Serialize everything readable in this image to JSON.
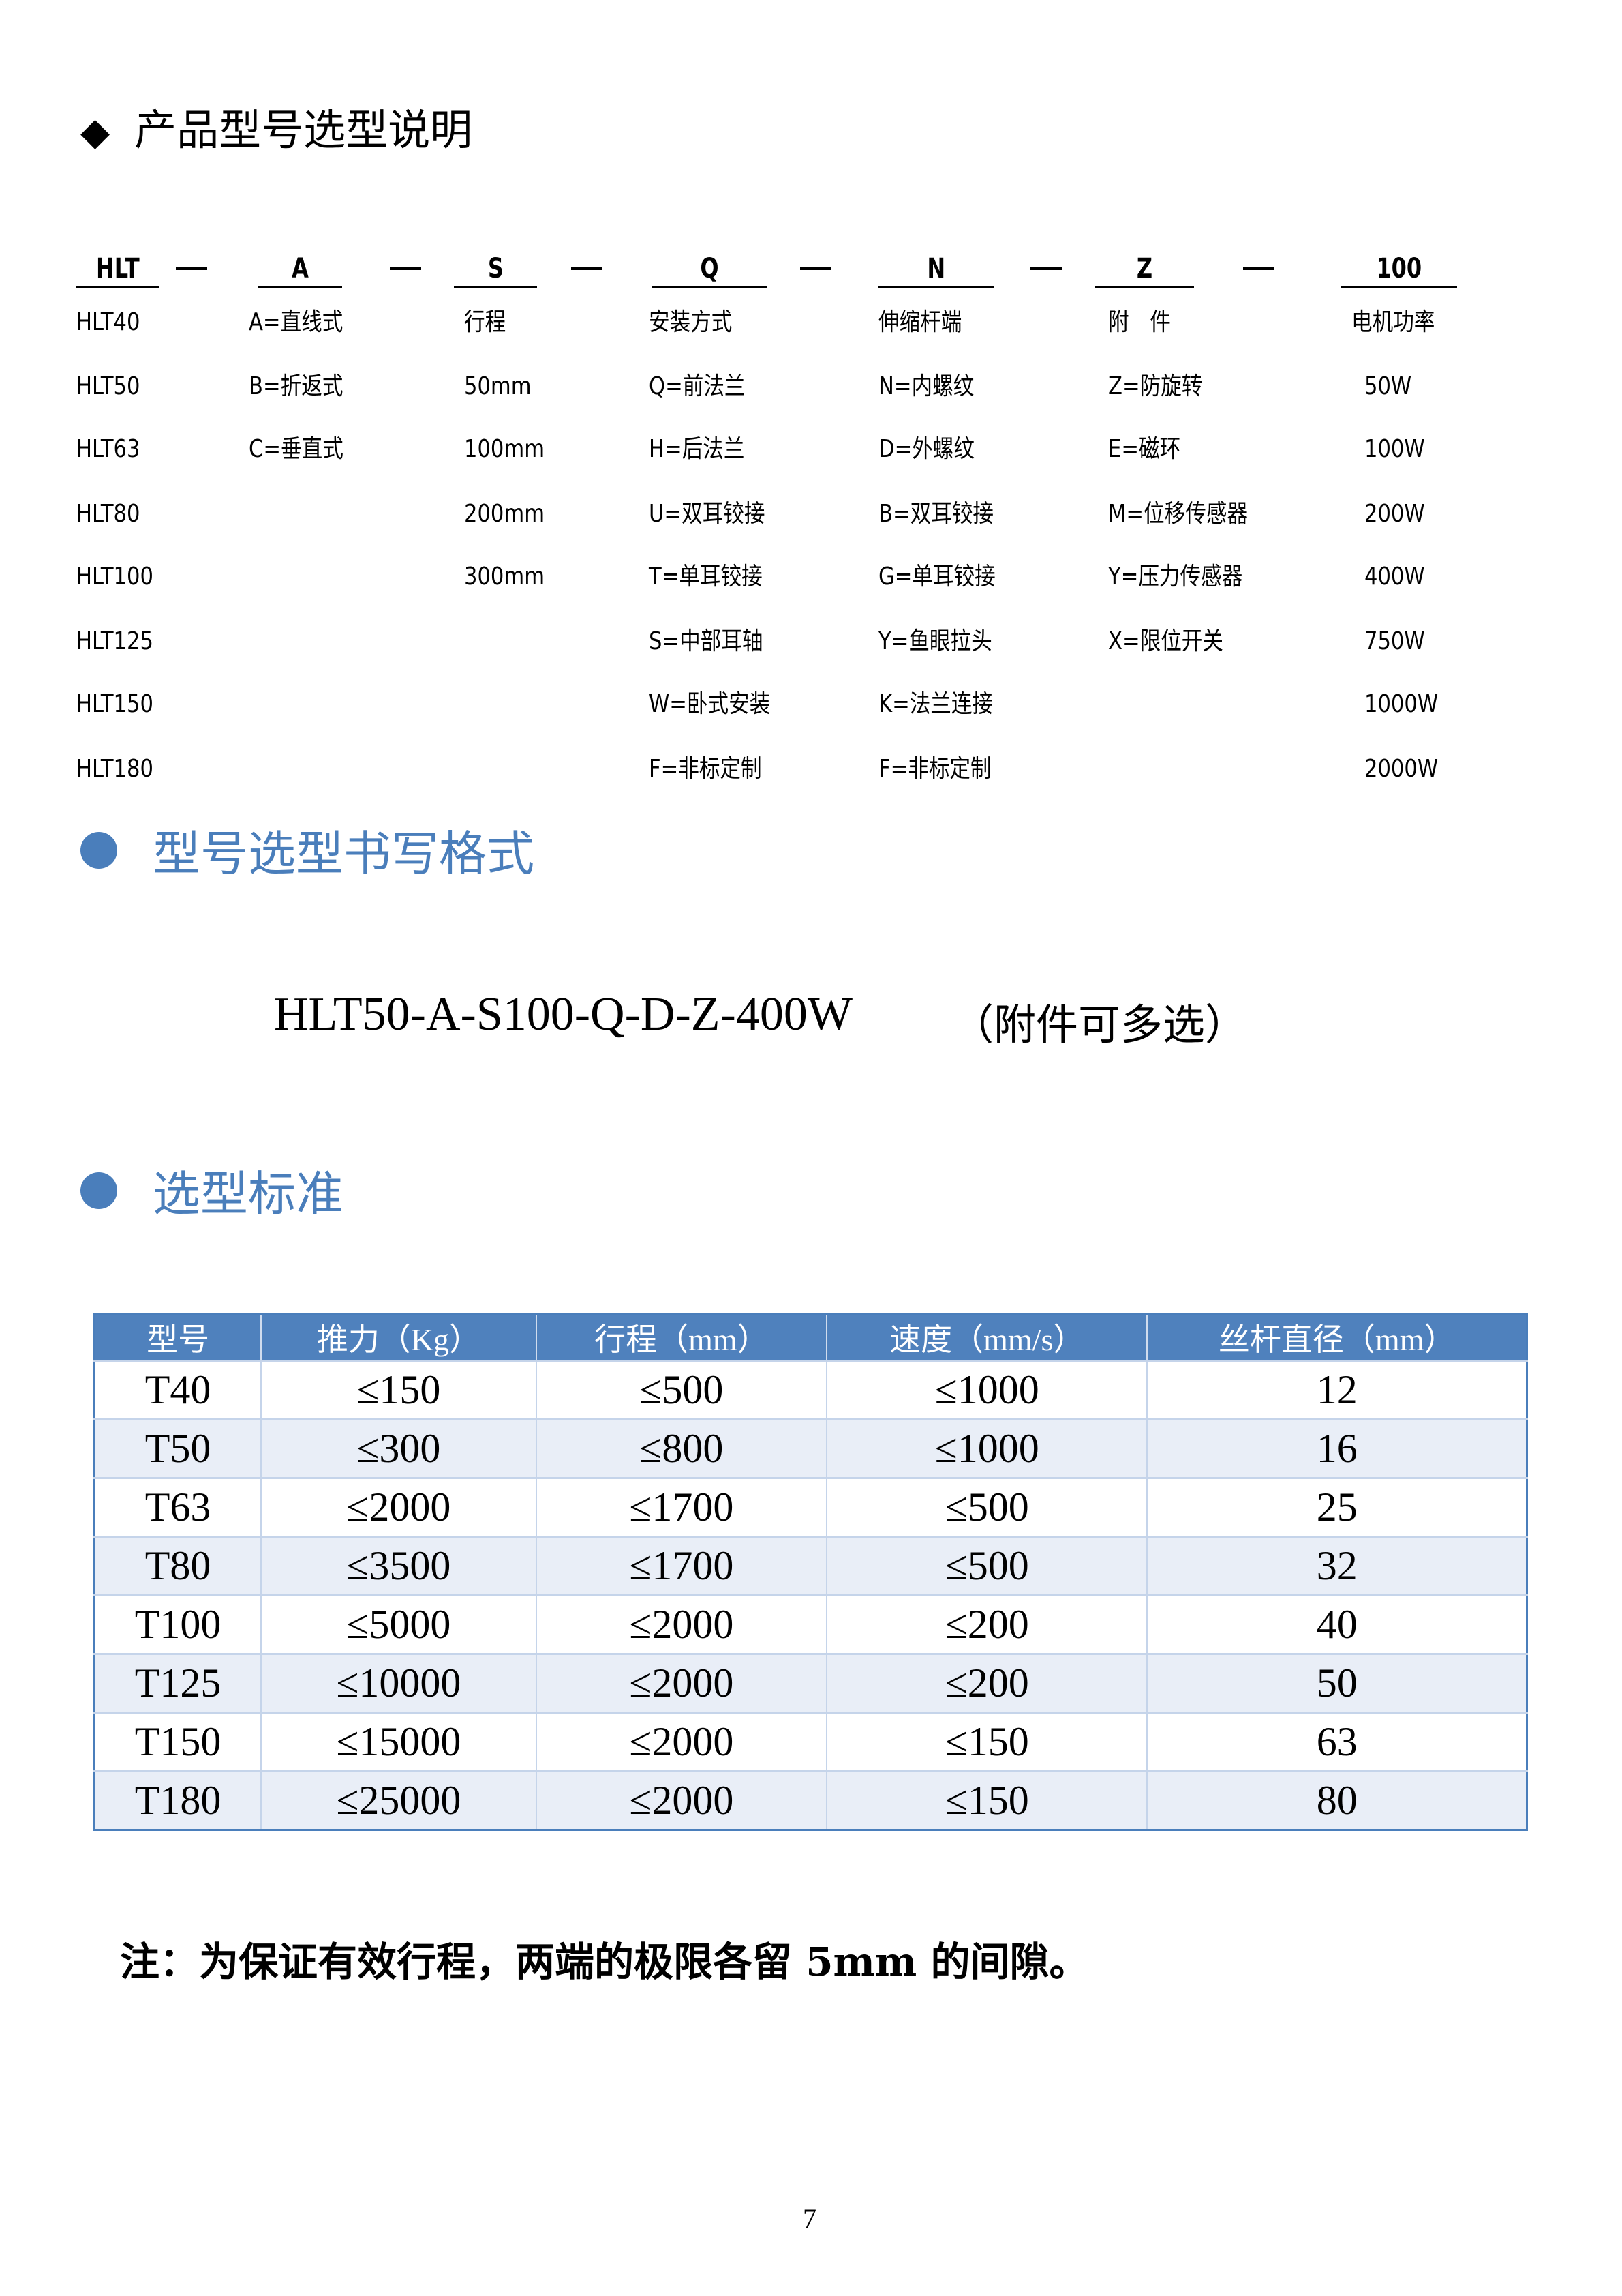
{
  "title": "产品型号选型说明",
  "title_icon": "diamond-icon",
  "code_parts": [
    "HLT",
    "A",
    "S",
    "Q",
    "N",
    "Z",
    "100"
  ],
  "code_separator": "—",
  "columns": [
    [
      "HLT40",
      "HLT50",
      "HLT63",
      "HLT80",
      "HLT100",
      "HLT125",
      "HLT150",
      "HLT180"
    ],
    [
      "A=直线式",
      "B=折返式",
      "C=垂直式"
    ],
    [
      "行程",
      "50mm",
      "100mm",
      "200mm",
      "300mm"
    ],
    [
      "安装方式",
      "Q=前法兰",
      "H=后法兰",
      "U=双耳铰接",
      "T=单耳铰接",
      "S=中部耳轴",
      "W=卧式安装",
      "F=非标定制"
    ],
    [
      "伸缩杆端",
      "N=内螺纹",
      "D=外螺纹",
      "B=双耳铰接",
      "G=单耳铰接",
      "Y=鱼眼拉头",
      "K=法兰连接",
      "F=非标定制"
    ],
    [
      "附　件",
      "Z=防旋转",
      "E=磁环",
      "M=位移传感器",
      "Y=压力传感器",
      "X=限位开关"
    ],
    [
      "电机功率",
      "50W",
      "100W",
      "200W",
      "400W",
      "750W",
      "1000W",
      "2000W"
    ]
  ],
  "section1": {
    "title": "型号选型书写格式",
    "example": "HLT50-A-S100-Q-D-Z-400W",
    "example_note": "（附件可多选）"
  },
  "section2": {
    "title": "选型标准"
  },
  "accent_color": "#4a7ebb",
  "table": {
    "headers": [
      "型号",
      "推力（Kg）",
      "行程（mm）",
      "速度（mm/s）",
      "丝杆直径（mm）"
    ],
    "rows": [
      [
        "T40",
        "≤150",
        "≤500",
        "≤1000",
        "12"
      ],
      [
        "T50",
        "≤300",
        "≤800",
        "≤1000",
        "16"
      ],
      [
        "T63",
        "≤2000",
        "≤1700",
        "≤500",
        "25"
      ],
      [
        "T80",
        "≤3500",
        "≤1700",
        "≤500",
        "32"
      ],
      [
        "T100",
        "≤5000",
        "≤2000",
        "≤200",
        "40"
      ],
      [
        "T125",
        "≤10000",
        "≤2000",
        "≤200",
        "50"
      ],
      [
        "T150",
        "≤15000",
        "≤2000",
        "≤150",
        "63"
      ],
      [
        "T180",
        "≤25000",
        "≤2000",
        "≤150",
        "80"
      ]
    ]
  },
  "note": "注：为保证有效行程，两端的极限各留 5mm 的间隙。",
  "page_number": "7"
}
